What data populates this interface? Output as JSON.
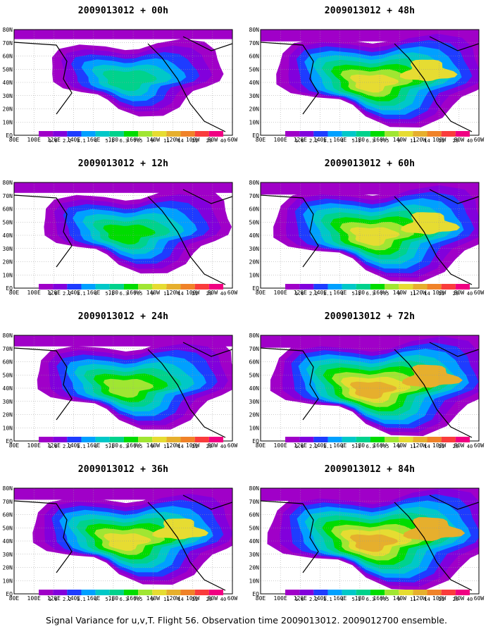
{
  "caption": "Signal Variance for u,v,T. Flight 56. Observation time 2009013012. 2009012700 ensemble.",
  "panels": [
    {
      "title": "2009013012 + 00h",
      "lead_hours": 0,
      "intensity": 0.25,
      "coverage": 0.45
    },
    {
      "title": "2009013012 + 48h",
      "lead_hours": 48,
      "intensity": 0.62,
      "coverage": 0.85
    },
    {
      "title": "2009013012 + 12h",
      "lead_hours": 12,
      "intensity": 0.38,
      "coverage": 0.6
    },
    {
      "title": "2009013012 + 60h",
      "lead_hours": 60,
      "intensity": 0.66,
      "coverage": 0.9
    },
    {
      "title": "2009013012 + 24h",
      "lead_hours": 24,
      "intensity": 0.5,
      "coverage": 0.72
    },
    {
      "title": "2009013012 + 72h",
      "lead_hours": 72,
      "intensity": 0.7,
      "coverage": 0.95
    },
    {
      "title": "2009013012 + 36h",
      "lead_hours": 36,
      "intensity": 0.58,
      "coverage": 0.8
    },
    {
      "title": "2009013012 + 84h",
      "lead_hours": 84,
      "intensity": 0.72,
      "coverage": 1.0
    }
  ],
  "map": {
    "lat_labels": [
      "80N",
      "70N",
      "60N",
      "50N",
      "40N",
      "30N",
      "20N",
      "10N",
      "EQ"
    ],
    "lon_labels": [
      "80E",
      "100E",
      "120E",
      "140E",
      "160E",
      "180",
      "160W",
      "140W",
      "120W",
      "100W",
      "80W",
      "60W"
    ]
  },
  "colorbar": {
    "levels": [
      "1.6",
      "2.2",
      "3.1",
      "4",
      "5.1",
      "6.3",
      "7.5",
      "9",
      "11",
      "14",
      "21",
      "29",
      "40"
    ],
    "colors": [
      "#a000c8",
      "#8200dc",
      "#1e3cff",
      "#00a0ff",
      "#00c8c8",
      "#00d28c",
      "#00dc00",
      "#a0e632",
      "#e6dc32",
      "#e6af2d",
      "#f08228",
      "#fa3c3c",
      "#f00082"
    ]
  }
}
